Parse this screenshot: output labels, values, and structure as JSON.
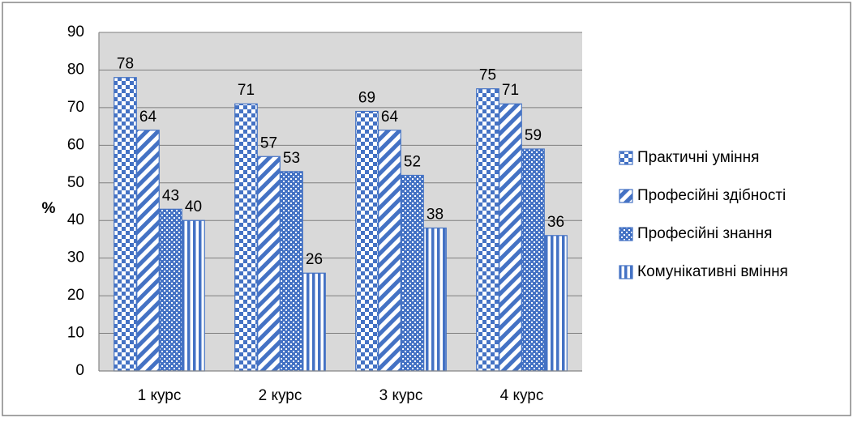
{
  "chart_data": {
    "type": "bar",
    "title": "",
    "xlabel": "",
    "ylabel": "%",
    "ylim": [
      0,
      90
    ],
    "ytick_step": 10,
    "grid": true,
    "legend_position": "right",
    "categories": [
      "1 курс",
      "2 курс",
      "3 курс",
      "4 курс"
    ],
    "series": [
      {
        "name": "Практичні уміння",
        "values": [
          78,
          71,
          69,
          75
        ],
        "pattern": "checker"
      },
      {
        "name": "Професійні здібності",
        "values": [
          64,
          57,
          64,
          71
        ],
        "pattern": "diagonal"
      },
      {
        "name": "Професійні знання",
        "values": [
          43,
          53,
          52,
          59
        ],
        "pattern": "dotted"
      },
      {
        "name": "Комунікативні вміння",
        "values": [
          40,
          26,
          38,
          36
        ],
        "pattern": "vertical"
      }
    ],
    "colors": {
      "bar_fill": "#4472c4",
      "plot_background": "#d9d9d9",
      "gridline": "#7f7f7f",
      "border": "#868686"
    }
  }
}
